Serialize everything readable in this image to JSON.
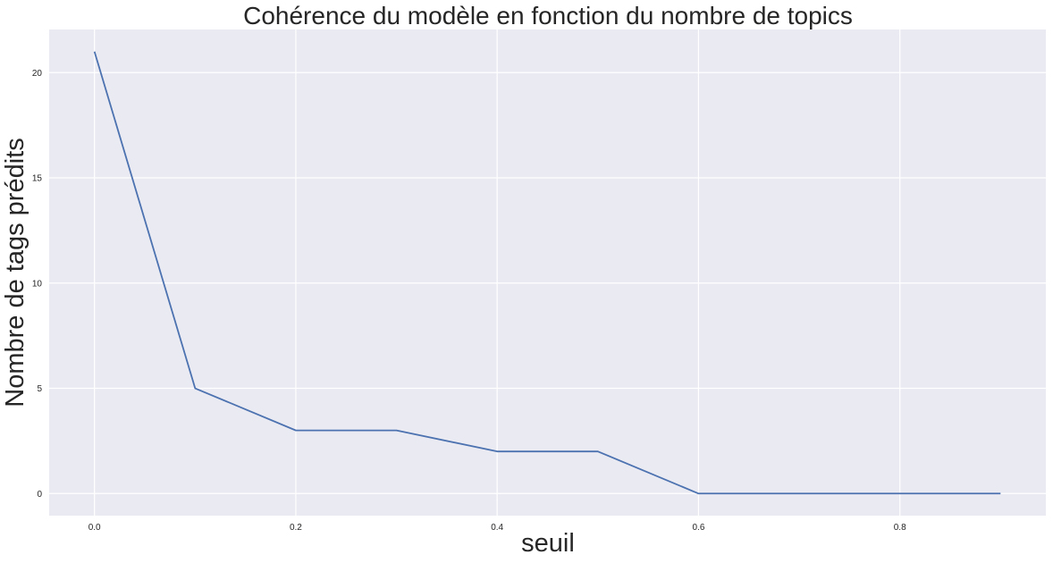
{
  "chart_data": {
    "type": "line",
    "title": "Cohérence du modèle en fonction du nombre de topics",
    "xlabel": "seuil",
    "ylabel": "Nombre de tags prédits",
    "x": [
      0.0,
      0.1,
      0.2,
      0.3,
      0.4,
      0.5,
      0.6,
      0.7,
      0.8,
      0.9
    ],
    "series": [
      {
        "values": [
          21,
          5,
          3,
          3,
          2,
          2,
          0,
          0,
          0,
          0
        ],
        "color": "#4c72b0"
      }
    ],
    "xlim": [
      -0.045,
      0.945
    ],
    "ylim": [
      -1.05,
      22.05
    ],
    "xticks": [
      0.0,
      0.2,
      0.4,
      0.6,
      0.8
    ],
    "xtick_labels": [
      "0.0",
      "0.2",
      "0.4",
      "0.6",
      "0.8"
    ],
    "yticks": [
      0,
      5,
      10,
      15,
      20
    ],
    "ytick_labels": [
      "0",
      "5",
      "10",
      "15",
      "20"
    ],
    "grid": true,
    "background": "#eaeaf2"
  }
}
